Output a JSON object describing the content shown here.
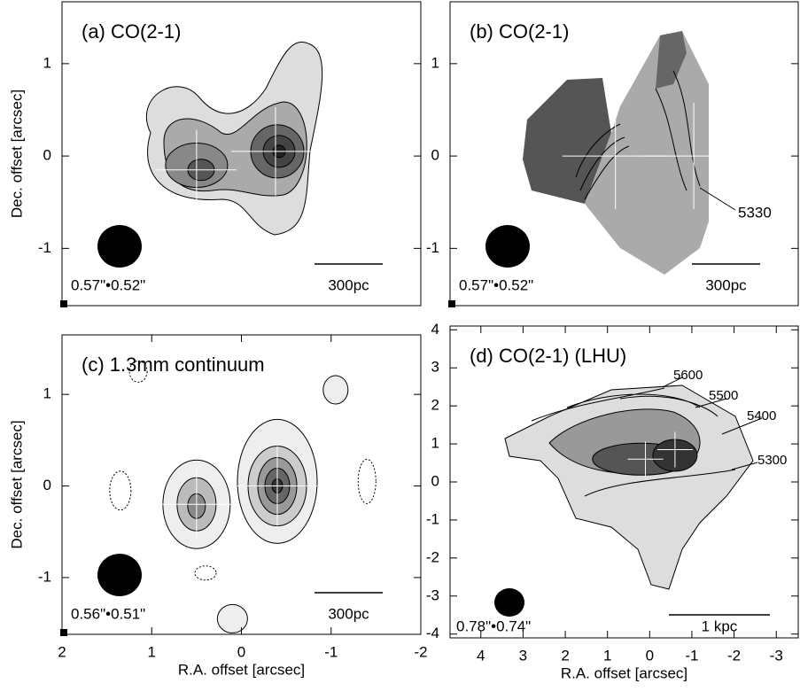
{
  "chart_data": [
    {
      "type": "image",
      "title": "(a) CO(2-1)",
      "ylabel": "Dec. offset [arcsec]",
      "xlim": [
        2,
        -2
      ],
      "ylim": [
        -1.62,
        1.67
      ],
      "yticks": [
        -1,
        0,
        1
      ],
      "beam_label": "0.57\"•0.52\"",
      "scalebar_label": "300pc",
      "annotations": []
    },
    {
      "type": "image",
      "title": "(b) CO(2-1)",
      "xlim": [
        2,
        -2
      ],
      "ylim": [
        -1.62,
        1.67
      ],
      "yticks": [
        -1,
        0,
        1
      ],
      "beam_label": "0.57\"•0.52\"",
      "scalebar_label": "300pc",
      "annotations": [
        "5330"
      ]
    },
    {
      "type": "image",
      "title": "(c) 1.3mm continuum",
      "ylabel": "Dec. offset [arcsec]",
      "xlabel": "R.A. offset [arcsec]",
      "xlim": [
        2,
        -2
      ],
      "ylim": [
        -1.62,
        1.65
      ],
      "xticks": [
        2,
        1,
        0,
        -1,
        -2
      ],
      "yticks": [
        -1,
        0,
        1
      ],
      "beam_label": "0.56\"•0.51\"",
      "scalebar_label": "300pc",
      "annotations": []
    },
    {
      "type": "image",
      "title": "(d) CO(2-1) (LHU)",
      "xlabel": "R.A. offset [arcsec]",
      "xlim": [
        4.73,
        -3.52
      ],
      "ylim": [
        -4.1,
        4.1
      ],
      "xticks": [
        4,
        3,
        2,
        1,
        0,
        -1,
        -2,
        -3
      ],
      "yticks": [
        -4,
        -3,
        -2,
        -1,
        0,
        1,
        2,
        3,
        4
      ],
      "beam_label": "0.78\"•0.74\"",
      "scalebar_label": "1 kpc",
      "annotations": [
        "5600",
        "5500",
        "5400",
        "5300"
      ]
    }
  ]
}
